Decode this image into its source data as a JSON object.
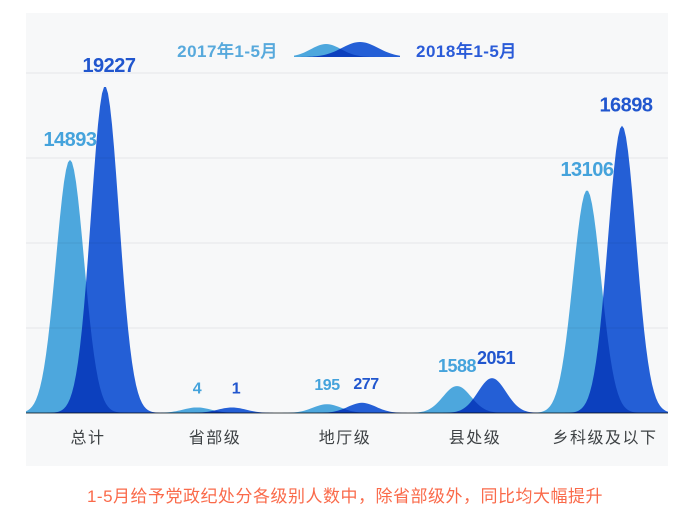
{
  "legend": {
    "left_label": "2017年1-5月",
    "right_label": "2018年1-5月"
  },
  "caption": {
    "text": "1-5月给予党政纪处分各级别人数中，除省部级外，同比均大幅提升",
    "color": "#fa6a4a"
  },
  "chart_data": {
    "type": "area",
    "subtype": "smoothed-peak-comparison",
    "categories": [
      "总计",
      "省部级",
      "地厅级",
      "县处级",
      "乡科级及以下"
    ],
    "series": [
      {
        "name": "2017年1-5月",
        "values": [
          14893,
          4,
          195,
          1588,
          13106
        ],
        "color": "#4face3",
        "label_color": "#45a3dc"
      },
      {
        "name": "2018年1-5月",
        "values": [
          19227,
          1,
          277,
          2051,
          16898
        ],
        "color": "#2562db",
        "label_color": "#2156ce"
      }
    ],
    "title": "",
    "xlabel": "",
    "ylabel": "",
    "ylim": [
      0,
      20000
    ],
    "gridline_interval": 5000,
    "grid": "horizontal",
    "legend_position": "top",
    "colors": {
      "panel_background": "#f7f8f9",
      "gridline": "#e4e6e9",
      "baseline": "#63676c",
      "category_label": "#3e4245"
    }
  }
}
